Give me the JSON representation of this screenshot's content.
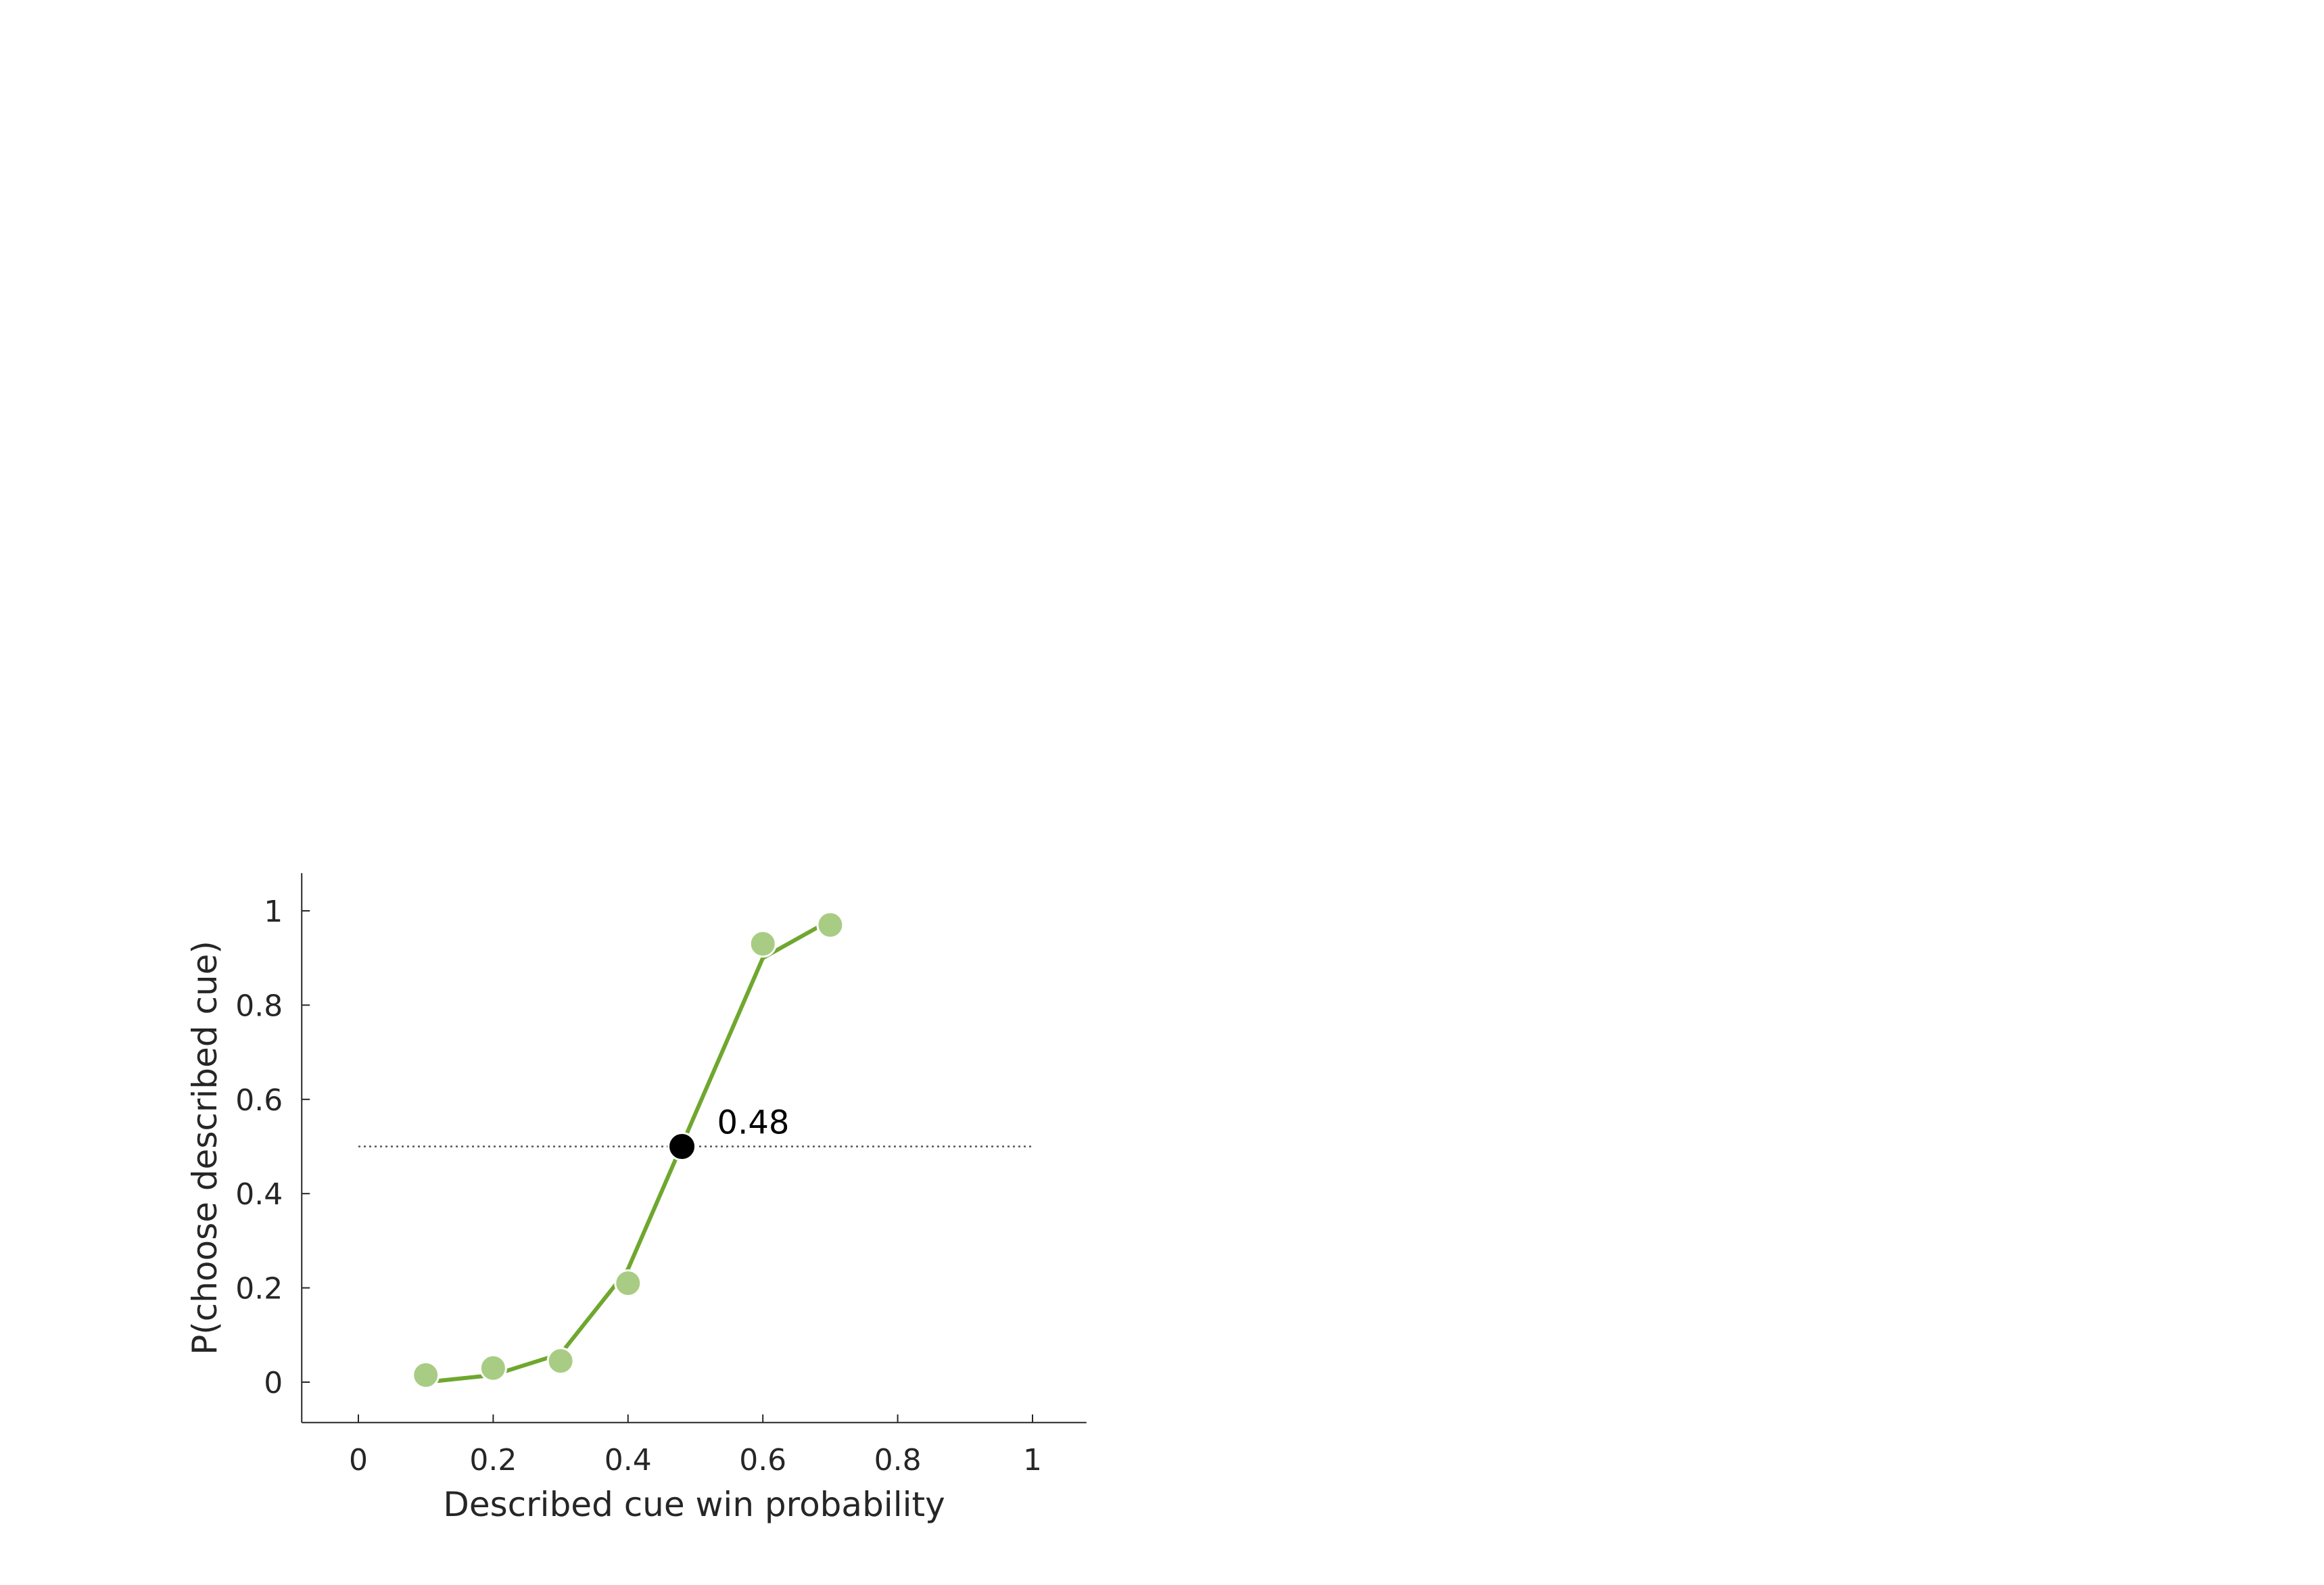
{
  "chart_data": {
    "type": "line",
    "title": "",
    "xlabel": "Described cue win probability",
    "ylabel": "P(choose described cue)",
    "xlim": [
      -0.08,
      1.08
    ],
    "ylim": [
      -0.08,
      1.08
    ],
    "xticks": [
      0,
      0.2,
      0.4,
      0.6,
      0.8,
      1
    ],
    "xtick_labels": [
      "0",
      "0.2",
      "0.4",
      "0.6",
      "0.8",
      "1"
    ],
    "yticks": [
      0,
      0.2,
      0.4,
      0.6,
      0.8,
      1
    ],
    "ytick_labels": [
      "0",
      "0.2",
      "0.4",
      "0.6",
      "0.8",
      "1"
    ],
    "grid": false,
    "series": [
      {
        "kind": "observed-points",
        "x": [
          0.1,
          0.2,
          0.3,
          0.4,
          0.6,
          0.7
        ],
        "y": [
          0.015,
          0.03,
          0.045,
          0.21,
          0.93,
          0.97
        ],
        "color": "#a8cc84"
      },
      {
        "kind": "fit-line",
        "x": [
          0.1,
          0.2,
          0.3,
          0.4,
          0.5,
          0.6,
          0.7
        ],
        "y": [
          0.0,
          0.015,
          0.06,
          0.24,
          0.57,
          0.9,
          0.98
        ],
        "color": "#6fa72f"
      }
    ],
    "reference_line": {
      "y": 0.5,
      "x_range": [
        0,
        1
      ],
      "style": "dotted",
      "color": "#555555"
    },
    "indifference_point": {
      "x": 0.48,
      "y": 0.5,
      "color": "#000000",
      "label": "0.48"
    },
    "colors": {
      "axis": "#262626",
      "points": "#a8cc84",
      "line": "#6fa72f",
      "marker": "#000000"
    }
  }
}
